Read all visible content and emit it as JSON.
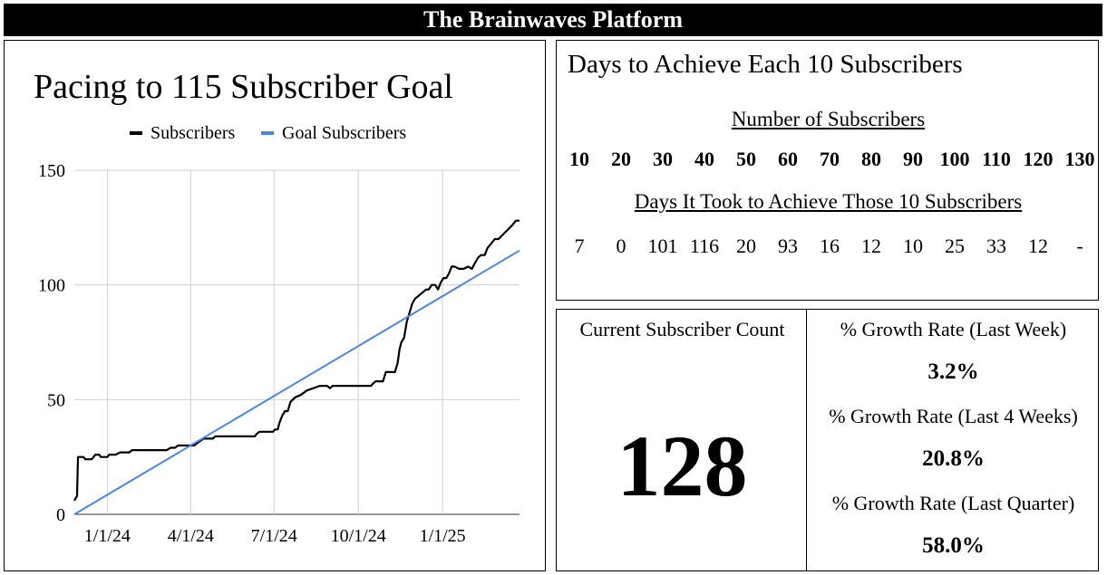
{
  "header": {
    "title": "The Brainwaves Platform"
  },
  "chart_data": {
    "type": "line",
    "title": "Pacing to 115 Subscriber Goal",
    "xlabel": "",
    "ylabel": "",
    "ylim": [
      0,
      150
    ],
    "yticks": [
      0,
      50,
      100,
      150
    ],
    "xticks": [
      {
        "label": "1/1/24",
        "date": "2024-01-01"
      },
      {
        "label": "4/1/24",
        "date": "2024-04-01"
      },
      {
        "label": "7/1/24",
        "date": "2024-07-01"
      },
      {
        "label": "10/1/24",
        "date": "2024-10-01"
      },
      {
        "label": "1/1/25",
        "date": "2025-01-01"
      }
    ],
    "xlim": [
      "2023-11-26",
      "2025-03-26"
    ],
    "grid": true,
    "legend_position": "top",
    "series": [
      {
        "name": "Subscribers",
        "color": "#000000",
        "points": [
          [
            "2023-11-26",
            6
          ],
          [
            "2023-11-29",
            8
          ],
          [
            "2023-11-30",
            25
          ],
          [
            "2023-12-06",
            25
          ],
          [
            "2023-12-08",
            24
          ],
          [
            "2023-12-15",
            24
          ],
          [
            "2023-12-17",
            25
          ],
          [
            "2023-12-19",
            26
          ],
          [
            "2023-12-23",
            26
          ],
          [
            "2023-12-25",
            25
          ],
          [
            "2024-01-01",
            25
          ],
          [
            "2024-01-03",
            26
          ],
          [
            "2024-01-10",
            26
          ],
          [
            "2024-01-15",
            27
          ],
          [
            "2024-01-25",
            27
          ],
          [
            "2024-01-28",
            28
          ],
          [
            "2024-03-06",
            28
          ],
          [
            "2024-03-10",
            29
          ],
          [
            "2024-03-15",
            29
          ],
          [
            "2024-03-18",
            30
          ],
          [
            "2024-04-05",
            30
          ],
          [
            "2024-04-08",
            31
          ],
          [
            "2024-04-15",
            33
          ],
          [
            "2024-04-25",
            33
          ],
          [
            "2024-04-28",
            34
          ],
          [
            "2024-06-10",
            34
          ],
          [
            "2024-06-12",
            35
          ],
          [
            "2024-06-15",
            36
          ],
          [
            "2024-06-25",
            36
          ],
          [
            "2024-06-30",
            36
          ],
          [
            "2024-07-02",
            37
          ],
          [
            "2024-07-05",
            37
          ],
          [
            "2024-07-07",
            40
          ],
          [
            "2024-07-10",
            43
          ],
          [
            "2024-07-13",
            45
          ],
          [
            "2024-07-16",
            45
          ],
          [
            "2024-07-19",
            49
          ],
          [
            "2024-07-24",
            51
          ],
          [
            "2024-07-30",
            52
          ],
          [
            "2024-08-06",
            54
          ],
          [
            "2024-08-13",
            55
          ],
          [
            "2024-08-20",
            56
          ],
          [
            "2024-08-28",
            56
          ],
          [
            "2024-08-31",
            55
          ],
          [
            "2024-09-03",
            56
          ],
          [
            "2024-09-30",
            56
          ],
          [
            "2024-10-15",
            56
          ],
          [
            "2024-10-17",
            57
          ],
          [
            "2024-10-20",
            58
          ],
          [
            "2024-10-28",
            58
          ],
          [
            "2024-10-31",
            62
          ],
          [
            "2024-11-10",
            62
          ],
          [
            "2024-11-13",
            66
          ],
          [
            "2024-11-15",
            72
          ],
          [
            "2024-11-17",
            75
          ],
          [
            "2024-11-20",
            77
          ],
          [
            "2024-11-23",
            84
          ],
          [
            "2024-11-26",
            88
          ],
          [
            "2024-11-29",
            92
          ],
          [
            "2024-12-02",
            94
          ],
          [
            "2024-12-05",
            95
          ],
          [
            "2024-12-08",
            96
          ],
          [
            "2024-12-11",
            97
          ],
          [
            "2024-12-14",
            98
          ],
          [
            "2024-12-17",
            98
          ],
          [
            "2024-12-20",
            100
          ],
          [
            "2024-12-24",
            100
          ],
          [
            "2024-12-27",
            98
          ],
          [
            "2024-12-30",
            101
          ],
          [
            "2025-01-02",
            103
          ],
          [
            "2025-01-05",
            103
          ],
          [
            "2025-01-08",
            105
          ],
          [
            "2025-01-11",
            108
          ],
          [
            "2025-01-14",
            108
          ],
          [
            "2025-01-19",
            107
          ],
          [
            "2025-01-24",
            107
          ],
          [
            "2025-01-29",
            108
          ],
          [
            "2025-02-02",
            107
          ],
          [
            "2025-02-06",
            110
          ],
          [
            "2025-02-09",
            112
          ],
          [
            "2025-02-12",
            113
          ],
          [
            "2025-02-16",
            113
          ],
          [
            "2025-02-19",
            116
          ],
          [
            "2025-02-23",
            118
          ],
          [
            "2025-02-27",
            120
          ],
          [
            "2025-03-03",
            120
          ],
          [
            "2025-03-08",
            122
          ],
          [
            "2025-03-13",
            124
          ],
          [
            "2025-03-18",
            126
          ],
          [
            "2025-03-22",
            128
          ],
          [
            "2025-03-26",
            128
          ]
        ]
      },
      {
        "name": "Goal Subscribers",
        "color": "#4a86e8",
        "points": [
          [
            "2023-11-26",
            0
          ],
          [
            "2025-03-26",
            115
          ]
        ]
      }
    ]
  },
  "days_panel": {
    "title": "Days to Achieve Each 10 Subscribers",
    "subscribers_label": "Number of Subscribers",
    "days_label": "Days It Took to Achieve Those 10 Subscribers",
    "milestones": [
      "10",
      "20",
      "30",
      "40",
      "50",
      "60",
      "70",
      "80",
      "90",
      "100",
      "110",
      "120",
      "130"
    ],
    "days": [
      "7",
      "0",
      "101",
      "116",
      "20",
      "93",
      "16",
      "12",
      "10",
      "25",
      "33",
      "12",
      "-"
    ]
  },
  "current": {
    "label": "Current Subscriber Count",
    "value": "128"
  },
  "growth": {
    "week_label": "% Growth Rate (Last Week)",
    "week_value": "3.2%",
    "month_label": "% Growth Rate (Last 4 Weeks)",
    "month_value": "20.8%",
    "quarter_label": "% Growth Rate (Last Quarter)",
    "quarter_value": "58.0%"
  }
}
